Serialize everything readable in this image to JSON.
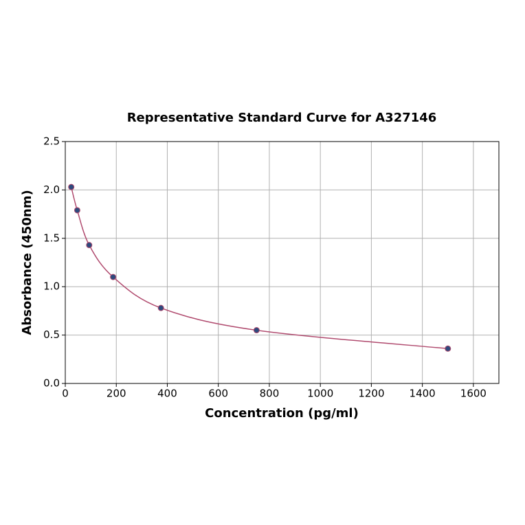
{
  "chart_data": {
    "type": "scatter",
    "title": "Representative Standard Curve for A327146",
    "x_label": "Concentration (pg/ml)",
    "y_label": "Absorbance (450nm)",
    "x": [
      23.4,
      46.9,
      93.75,
      187.5,
      375,
      750,
      1500
    ],
    "values": [
      2.03,
      1.79,
      1.43,
      1.1,
      0.78,
      0.55,
      0.36
    ],
    "point_color": "#2e4a7d",
    "curve_color": "#b04a6e",
    "fit_curve": true,
    "xlim": [
      0,
      1700
    ],
    "ylim": [
      0,
      2.5
    ],
    "xticks": [
      0,
      200,
      400,
      600,
      800,
      1000,
      1200,
      1400,
      1600
    ],
    "yticks": [
      {
        "value": 0,
        "label": "0.0"
      },
      0.5,
      {
        "value": 1,
        "label": "1.0"
      },
      1.5,
      {
        "value": 2,
        "label": "2.0"
      },
      2.5
    ],
    "grid": true
  }
}
